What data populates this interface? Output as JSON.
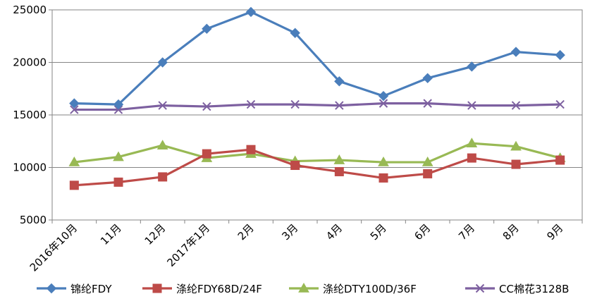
{
  "chart_data": {
    "type": "line",
    "title": "",
    "xlabel": "",
    "ylabel": "",
    "categories": [
      "2016年10月",
      "11月",
      "12月",
      "2017年1月",
      "2月",
      "3月",
      "4月",
      "5月",
      "6月",
      "7月",
      "8月",
      "9月"
    ],
    "ylim": [
      5000,
      25000
    ],
    "yticks": [
      5000,
      10000,
      15000,
      20000,
      25000
    ],
    "grid": "horizontal",
    "legend": "bottom",
    "series": [
      {
        "name": "锦纶FDY",
        "color": "#4a7ebb",
        "marker": "diamond",
        "values": [
          16100,
          16000,
          20000,
          23200,
          24800,
          22800,
          18200,
          16800,
          18500,
          19600,
          21000,
          20700
        ]
      },
      {
        "name": "涤纶FDY68D/24F",
        "color": "#be4b48",
        "marker": "square",
        "values": [
          8300,
          8600,
          9100,
          11300,
          11700,
          10200,
          9600,
          9000,
          9400,
          10900,
          10300,
          10700
        ]
      },
      {
        "name": "涤纶DTY100D/36F",
        "color": "#98b954",
        "marker": "triangle",
        "values": [
          10500,
          11000,
          12100,
          10900,
          11300,
          10600,
          10700,
          10500,
          10500,
          12300,
          12000,
          10900
        ]
      },
      {
        "name": "CC棉花3128B",
        "color": "#7d60a0",
        "marker": "x",
        "values": [
          15500,
          15500,
          15900,
          15800,
          16000,
          16000,
          15900,
          16100,
          16100,
          15900,
          15900,
          16000
        ]
      }
    ]
  }
}
